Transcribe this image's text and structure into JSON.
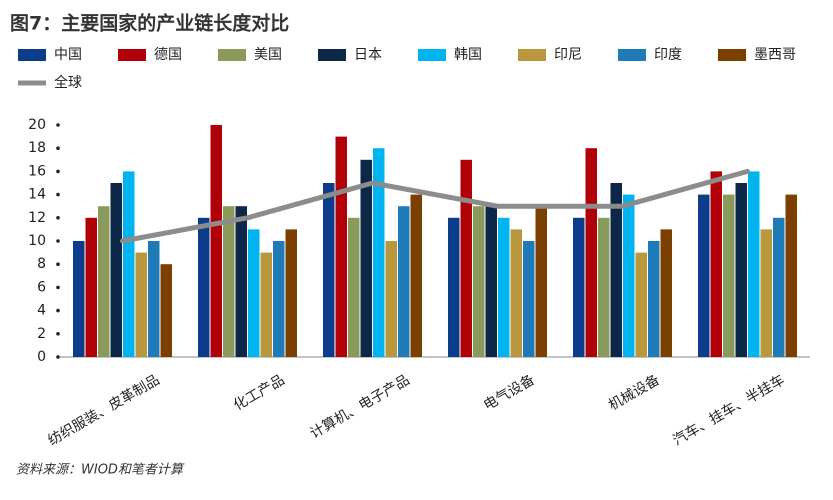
{
  "chart_data": {
    "type": "bar",
    "title": "图7：主要国家的产业链长度对比",
    "source": "资料来源：WIOD和笔者计算",
    "categories": [
      "纺织服装、皮革制品",
      "化工产品",
      "计算机、电子产品",
      "电气设备",
      "机械设备",
      "汽车、挂车、半挂车"
    ],
    "series": [
      {
        "name": "中国",
        "color": "#0b3d8c",
        "values": [
          10,
          12,
          15,
          12,
          12,
          14
        ]
      },
      {
        "name": "德国",
        "color": "#b00008",
        "values": [
          12,
          20,
          19,
          17,
          18,
          16
        ]
      },
      {
        "name": "美国",
        "color": "#8a9a5b",
        "values": [
          13,
          13,
          12,
          13,
          12,
          14
        ]
      },
      {
        "name": "日本",
        "color": "#0d2748",
        "values": [
          15,
          13,
          17,
          13,
          15,
          15
        ]
      },
      {
        "name": "韩国",
        "color": "#00b4f0",
        "values": [
          16,
          11,
          18,
          12,
          14,
          16
        ]
      },
      {
        "name": "印尼",
        "color": "#b9973c",
        "values": [
          9,
          9,
          10,
          11,
          9,
          11
        ]
      },
      {
        "name": "印度",
        "color": "#1f7bb8",
        "values": [
          10,
          10,
          13,
          10,
          10,
          12
        ]
      },
      {
        "name": "墨西哥",
        "color": "#7b3f00",
        "values": [
          8,
          11,
          14,
          13,
          11,
          14
        ]
      },
      {
        "name": "全球",
        "color": "#8c8c8c",
        "type": "line",
        "values": [
          10,
          12,
          15,
          13,
          13,
          16
        ]
      }
    ],
    "ylim": [
      0,
      20
    ],
    "yticks": [
      0,
      2,
      4,
      6,
      8,
      10,
      12,
      14,
      16,
      18,
      20
    ],
    "grid": false
  }
}
